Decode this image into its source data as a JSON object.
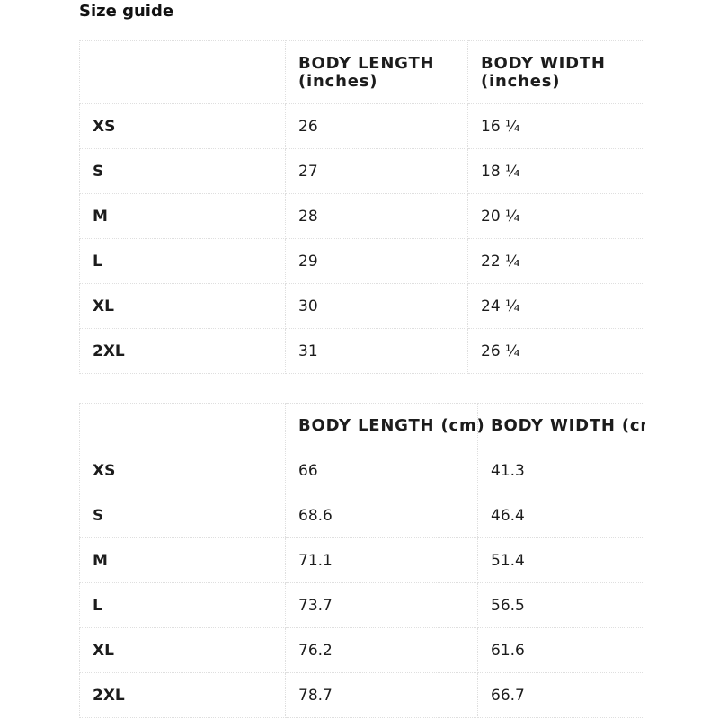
{
  "title": "Size guide",
  "colors": {
    "text": "#1c1c1c",
    "border": "#dfdfdf",
    "background": "#ffffff"
  },
  "inches_table": {
    "header": {
      "length_line1": "BODY LENGTH",
      "length_line2": "(inches)",
      "width_line1": "BODY WIDTH",
      "width_line2": "(inches)"
    },
    "rows": [
      {
        "size": "XS",
        "length": "26",
        "width": "16 ¼"
      },
      {
        "size": "S",
        "length": "27",
        "width": "18 ¼"
      },
      {
        "size": "M",
        "length": "28",
        "width": "20 ¼"
      },
      {
        "size": "L",
        "length": "29",
        "width": "22 ¼"
      },
      {
        "size": "XL",
        "length": "30",
        "width": "24 ¼"
      },
      {
        "size": "2XL",
        "length": "31",
        "width": "26 ¼"
      }
    ]
  },
  "cm_table": {
    "header": {
      "length": "BODY LENGTH (cm)",
      "width": "BODY WIDTH (cm)"
    },
    "rows": [
      {
        "size": "XS",
        "length": "66",
        "width": "41.3"
      },
      {
        "size": "S",
        "length": "68.6",
        "width": "46.4"
      },
      {
        "size": "M",
        "length": "71.1",
        "width": "51.4"
      },
      {
        "size": "L",
        "length": "73.7",
        "width": "56.5"
      },
      {
        "size": "XL",
        "length": "76.2",
        "width": "61.6"
      },
      {
        "size": "2XL",
        "length": "78.7",
        "width": "66.7"
      }
    ]
  }
}
